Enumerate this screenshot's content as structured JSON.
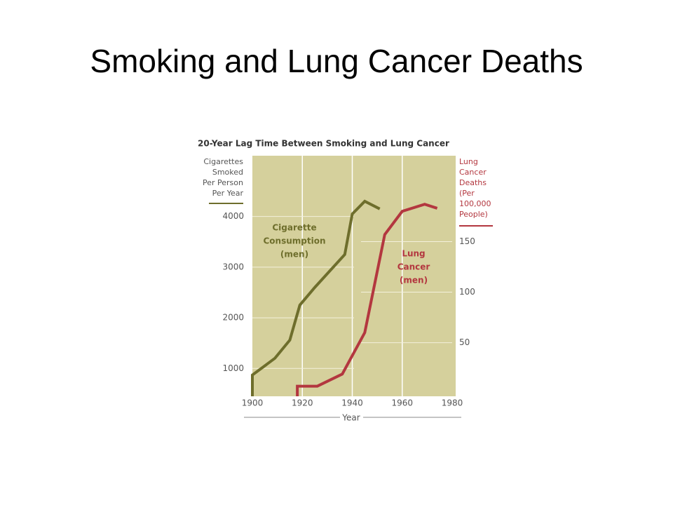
{
  "slide": {
    "title": "Smoking and Lung Cancer Deaths"
  },
  "chart_data": {
    "type": "line",
    "title": "20-Year Lag Time Between Smoking and Lung Cancer",
    "x_label": "Year",
    "y_label": [
      "Cigarettes",
      "Smoked",
      "Per Person",
      "Per Year"
    ],
    "y2_label": [
      "Lung",
      "Cancer",
      "Deaths",
      "(Per",
      "100,000",
      "People)"
    ],
    "xlim": [
      1900,
      1980
    ],
    "xticks": [
      1900,
      1920,
      1940,
      1960,
      1980
    ],
    "ylim": [
      450,
      5200
    ],
    "yticks": [
      1000,
      2000,
      3000,
      4000
    ],
    "y2lim": [
      -3,
      235
    ],
    "y2ticks": [
      50,
      100,
      150
    ],
    "background": "#d5d09c",
    "series": [
      {
        "name": [
          "Cigarette",
          "Consumption",
          "(men)"
        ],
        "color": "#6e6e2c",
        "axis": "y",
        "x": [
          1900,
          1900,
          1909,
          1915,
          1919,
          1925,
          1937,
          1940,
          1945,
          1951
        ],
        "values": [
          450,
          870,
          1200,
          1560,
          2250,
          2600,
          3250,
          4050,
          4300,
          4150
        ]
      },
      {
        "name": [
          "Lung",
          "Cancer",
          "(men)"
        ],
        "color": "#b3373f",
        "axis": "y2",
        "x": [
          1918,
          1918,
          1926,
          1936,
          1945,
          1953,
          1960,
          1969,
          1974
        ],
        "values": [
          -3,
          7,
          7,
          19,
          60,
          157,
          180,
          187,
          183
        ]
      }
    ]
  }
}
